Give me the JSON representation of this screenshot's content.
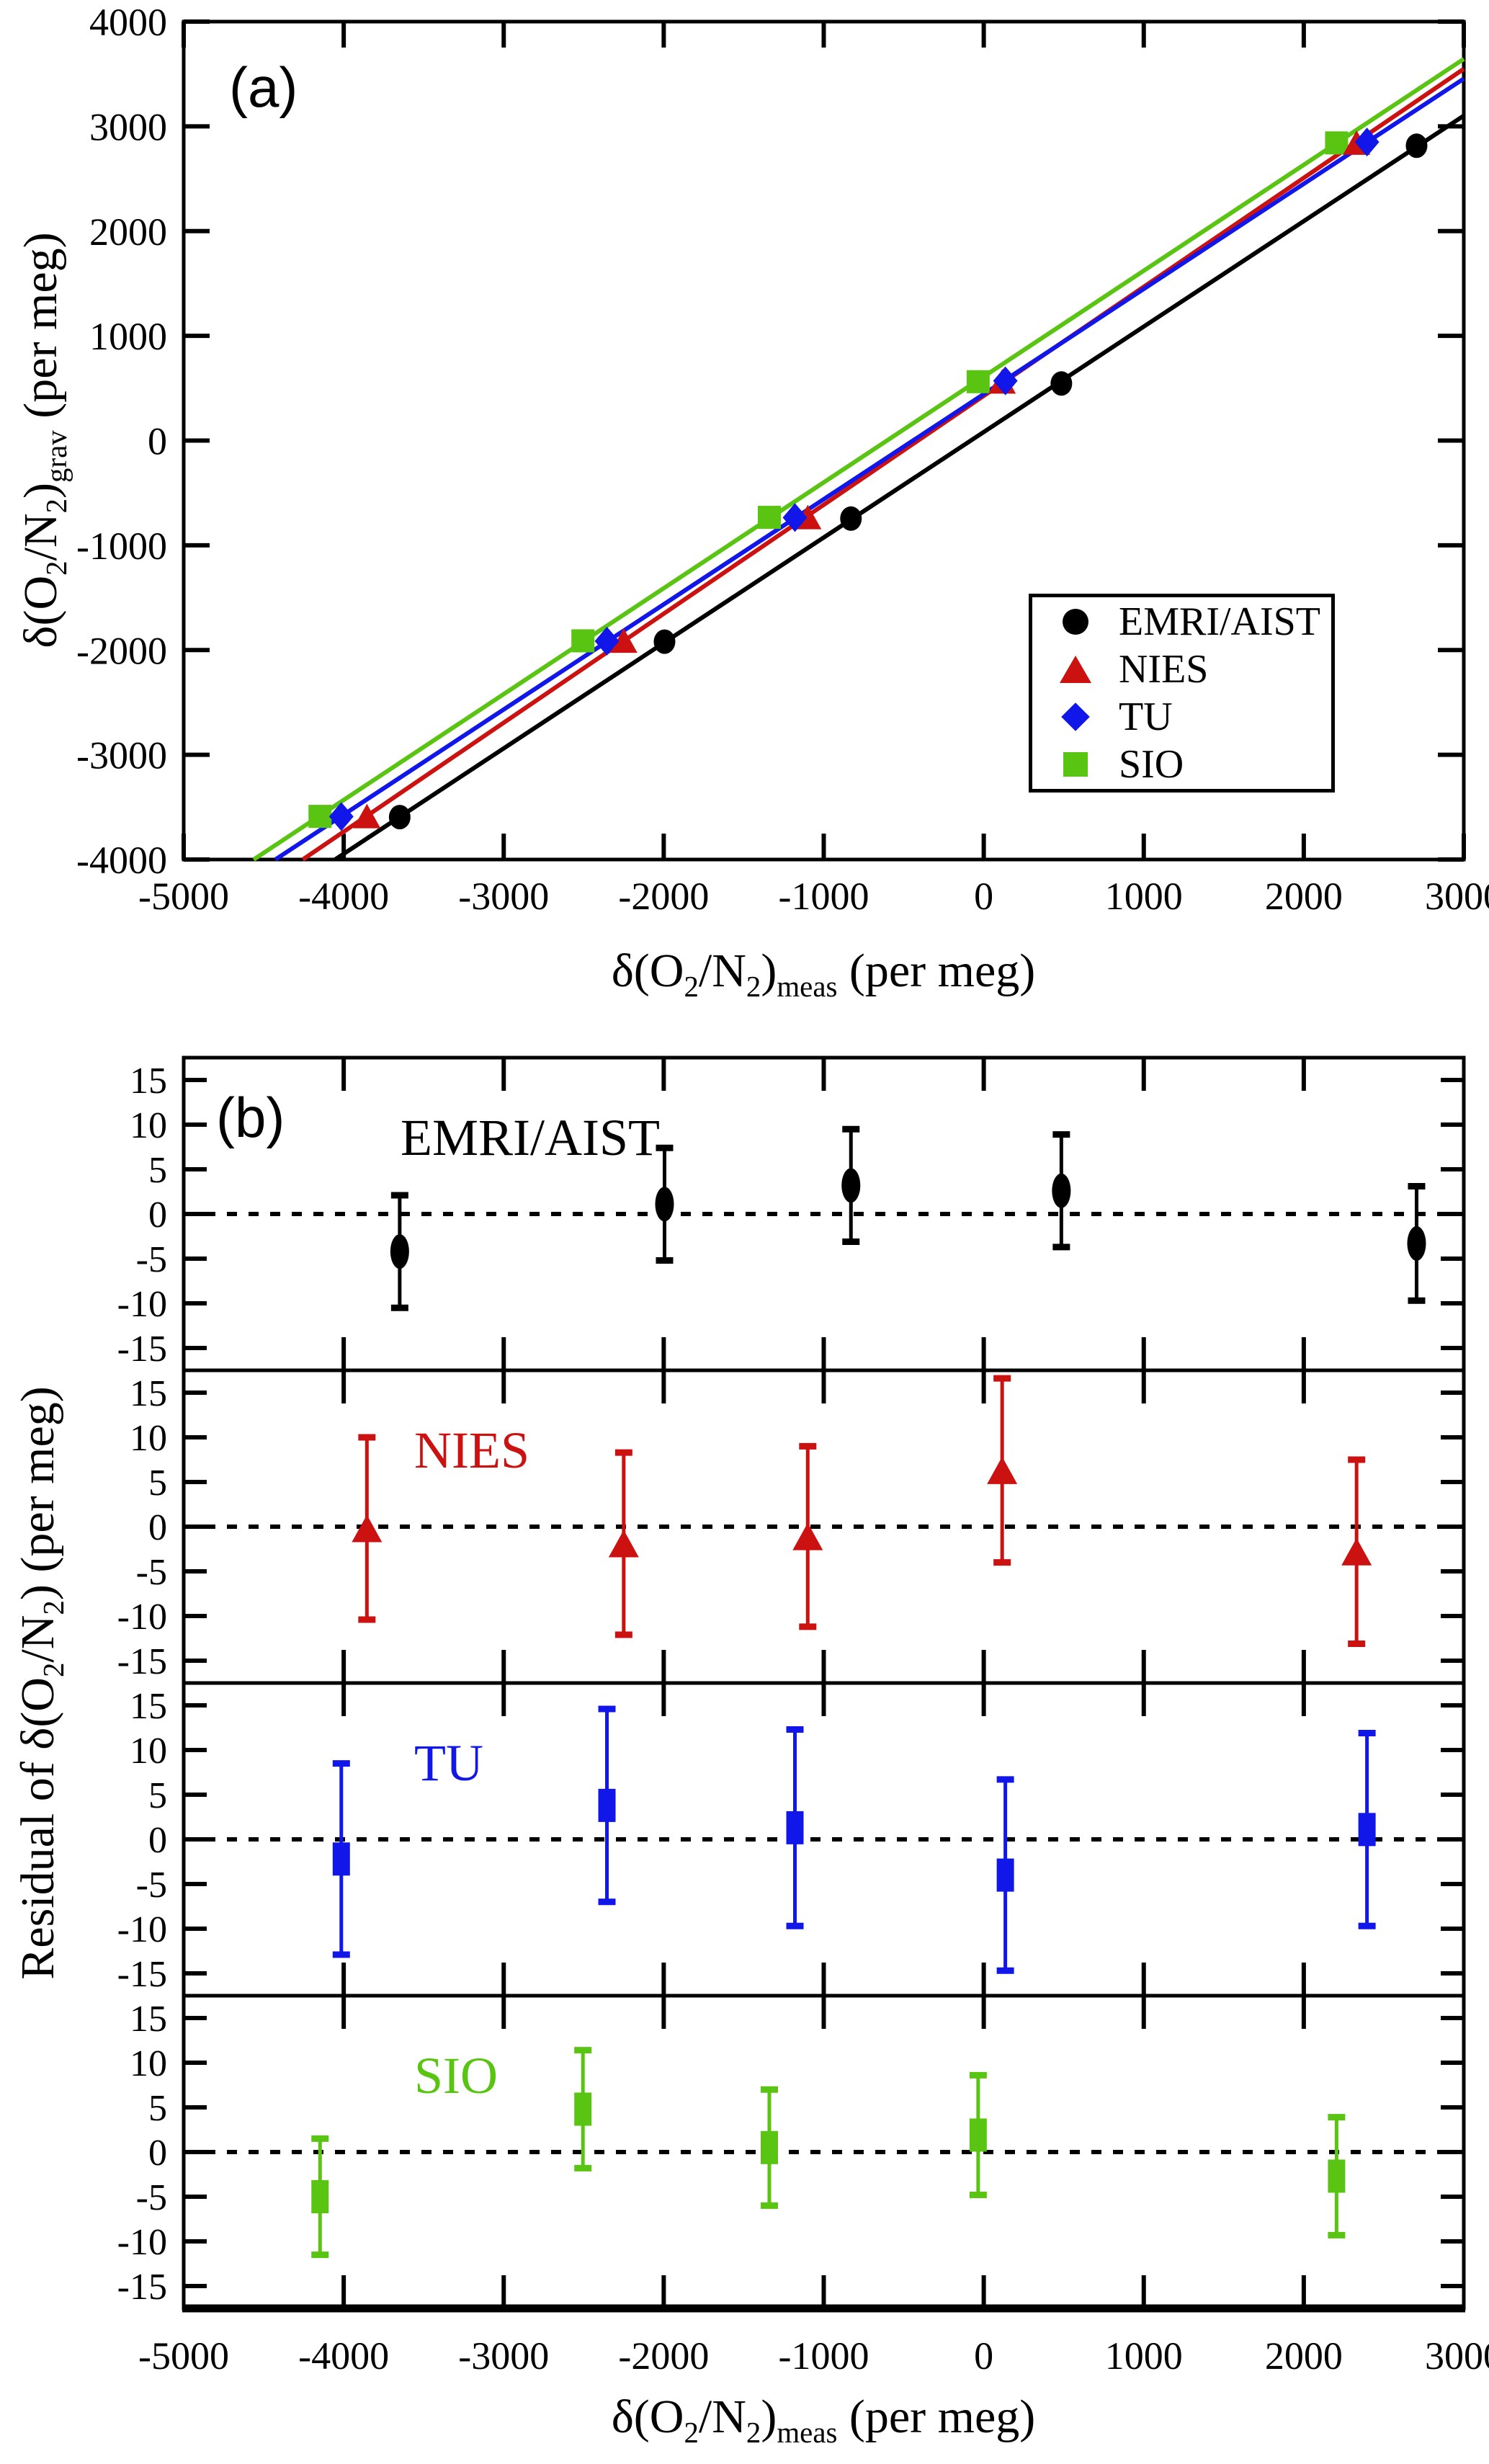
{
  "figure": {
    "panel_a_label": "(a)",
    "panel_b_label": "(b)",
    "xlabel_segments": [
      {
        "t": "δ(O"
      },
      {
        "t": "2",
        "sub": true
      },
      {
        "t": "/N"
      },
      {
        "t": "2",
        "sub": true
      },
      {
        "t": ")"
      },
      {
        "t": "meas",
        "sub": true
      },
      {
        "t": " (per meg)"
      }
    ],
    "ylabel_a_segments": [
      {
        "t": "δ(O"
      },
      {
        "t": "2",
        "sub": true
      },
      {
        "t": "/N"
      },
      {
        "t": "2",
        "sub": true
      },
      {
        "t": ")"
      },
      {
        "t": "grav",
        "sub": true
      },
      {
        "t": " (per meg)"
      }
    ],
    "ylabel_b_segments": [
      {
        "t": "Residual of δ(O"
      },
      {
        "t": "2",
        "sub": true
      },
      {
        "t": "/N"
      },
      {
        "t": "2",
        "sub": true
      },
      {
        "t": ")   (per meg)"
      }
    ],
    "legend": {
      "items": [
        {
          "label": "EMRI/AIST",
          "marker": "circle",
          "color": "#000000"
        },
        {
          "label": "NIES",
          "marker": "triangle",
          "color": "#cc1111"
        },
        {
          "label": "TU",
          "marker": "diamond",
          "color": "#1117e8"
        },
        {
          "label": "SIO",
          "marker": "square",
          "color": "#5ac413"
        }
      ]
    }
  },
  "chart_data": [
    {
      "id": "panel_a",
      "type": "scatter",
      "title": "(a)",
      "xlabel": "delta(O2/N2)meas (per meg)",
      "ylabel": "delta(O2/N2)grav (per meg)",
      "xlim": [
        -5000,
        3000
      ],
      "ylim": [
        -4000,
        4000
      ],
      "xticks": [
        -5000,
        -4000,
        -3000,
        -2000,
        -1000,
        0,
        1000,
        2000,
        3000
      ],
      "yticks": [
        -4000,
        -3000,
        -2000,
        -1000,
        0,
        1000,
        2000,
        3000,
        4000
      ],
      "grid": false,
      "legend_position": "inset lower-right",
      "series": [
        {
          "name": "EMRI/AIST",
          "color": "#000000",
          "marker": "circle",
          "points": [
            [
              -3650,
              -3595
            ],
            [
              -1995,
              -1920
            ],
            [
              -830,
              -745
            ],
            [
              485,
              545
            ],
            [
              2705,
              2815
            ]
          ],
          "fit_line": true
        },
        {
          "name": "NIES",
          "color": "#cc1111",
          "marker": "triangle",
          "points": [
            [
              -3855,
              -3585
            ],
            [
              -2250,
              -1910
            ],
            [
              -1100,
              -730
            ],
            [
              115,
              565
            ],
            [
              2330,
              2845
            ]
          ],
          "fit_line": true
        },
        {
          "name": "TU",
          "color": "#1117e8",
          "marker": "diamond",
          "points": [
            [
              -4015,
              -3590
            ],
            [
              -2355,
              -1915
            ],
            [
              -1180,
              -735
            ],
            [
              135,
              570
            ],
            [
              2395,
              2850
            ]
          ],
          "fit_line": true
        },
        {
          "name": "SIO",
          "color": "#5ac413",
          "marker": "square",
          "points": [
            [
              -4148,
              -3588
            ],
            [
              -2505,
              -1912
            ],
            [
              -1340,
              -733
            ],
            [
              -35,
              562
            ],
            [
              2205,
              2842
            ]
          ],
          "fit_line": true
        }
      ]
    },
    {
      "id": "panel_b",
      "type": "scatter-errorbar",
      "xlim": [
        -5000,
        3000
      ],
      "xticks": [
        -5000,
        -4000,
        -3000,
        -2000,
        -1000,
        0,
        1000,
        2000,
        3000
      ],
      "panel_ylim": [
        -17.5,
        17.5
      ],
      "panel_yticks": [
        15,
        10,
        5,
        0,
        -5,
        -10,
        -15
      ],
      "zero_line": "dotted",
      "xlabel": "delta(O2/N2)meas (per meg)",
      "ylabel": "Residual of delta(O2/N2) (per meg)",
      "panels": [
        {
          "label": "EMRI/AIST",
          "color": "#000000",
          "marker": "ellipse",
          "x": [
            -3650,
            -1995,
            -830,
            485,
            2705
          ],
          "y": [
            -4.2,
            1.1,
            3.2,
            2.6,
            -3.3
          ],
          "yerr": [
            6.3,
            6.3,
            6.3,
            6.3,
            6.4
          ]
        },
        {
          "label": "NIES",
          "color": "#cc1111",
          "marker": "triangle",
          "x": [
            -3855,
            -2250,
            -1100,
            115,
            2330
          ],
          "y": [
            -0.2,
            -1.9,
            -1.1,
            6.3,
            -2.8
          ],
          "yerr": [
            10.2,
            10.2,
            10.1,
            10.3,
            10.3
          ]
        },
        {
          "label": "TU",
          "color": "#1117e8",
          "marker": "square",
          "x": [
            -4015,
            -2355,
            -1180,
            135,
            2395
          ],
          "y": [
            -2.2,
            3.8,
            1.3,
            -4.0,
            1.1
          ],
          "yerr": [
            10.7,
            10.8,
            11.0,
            10.7,
            10.8
          ]
        },
        {
          "label": "SIO",
          "color": "#5ac413",
          "marker": "square",
          "x": [
            -4148,
            -2505,
            -1340,
            -35,
            2205
          ],
          "y": [
            -5.0,
            4.8,
            0.5,
            1.9,
            -2.7
          ],
          "yerr": [
            6.5,
            6.6,
            6.5,
            6.7,
            6.6
          ]
        }
      ]
    }
  ]
}
